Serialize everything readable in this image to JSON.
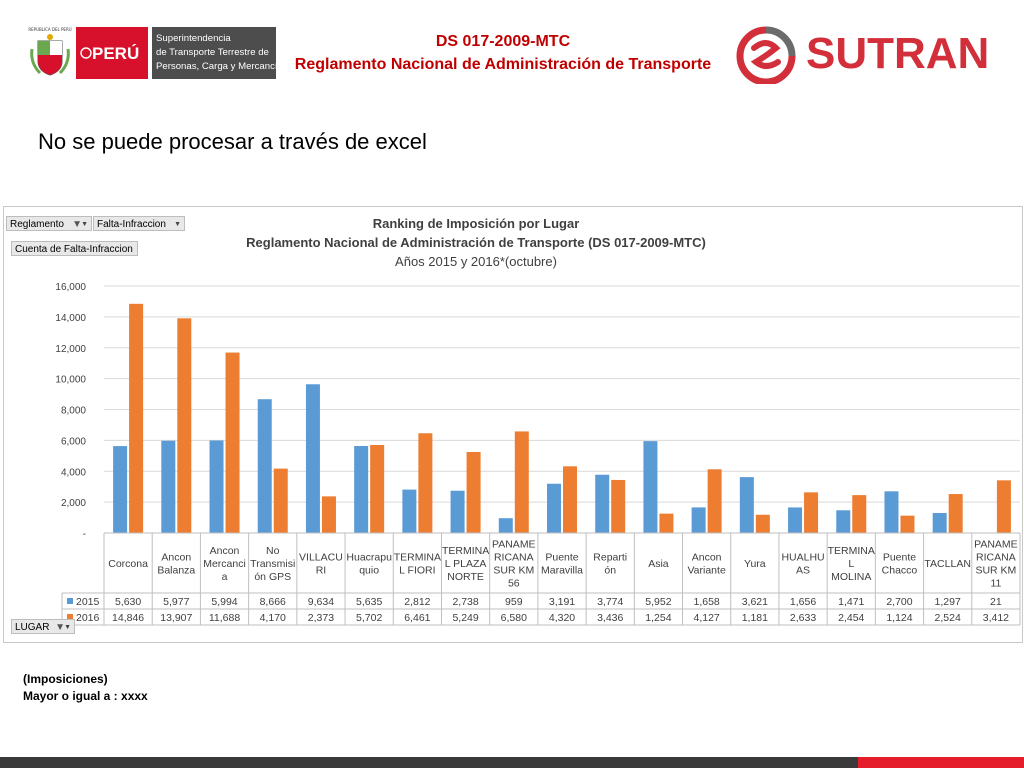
{
  "header": {
    "gov": {
      "shield_caption": "REPÚBLICA DEL PERÚ",
      "country": "PERÚ",
      "entity_lines": [
        "Superintendencia",
        "de Transporte Terrestre de",
        "Personas, Carga y Mercancías"
      ]
    },
    "title_line1": "DS 017-2009-MTC",
    "title_line2": "Reglamento Nacional de Administración de Transporte",
    "brand": "SUTRAN"
  },
  "subtitle": "No se puede procesar a través de excel",
  "pivot": {
    "filter_reglamento": "Reglamento",
    "filter_falta": "Falta-Infraccion",
    "value_field": "Cuenta de Falta-Infraccion",
    "row_field": "LUGAR"
  },
  "chart_data": {
    "type": "bar",
    "title": "Ranking de Imposición por Lugar",
    "subtitle_line1": "Reglamento Nacional  de Administración  de Transporte (DS 017-2009-MTC)",
    "subtitle_line2": "Años 2015 y 2016*(octubre)",
    "ylim": [
      0,
      16000
    ],
    "yticks": [
      "-",
      "2,000",
      "4,000",
      "6,000",
      "8,000",
      "10,000",
      "12,000",
      "14,000",
      "16,000"
    ],
    "grid": true,
    "categories": [
      [
        "Corcona"
      ],
      [
        "Ancon",
        "Balanza"
      ],
      [
        "Ancon",
        "Mercanci",
        "a"
      ],
      [
        "No",
        "Transmisi",
        "ón GPS"
      ],
      [
        "VILLACU",
        "RI"
      ],
      [
        "Huacrapu",
        "quio"
      ],
      [
        "TERMINA",
        "L FIORI"
      ],
      [
        "TERMINA",
        "L PLAZA",
        "NORTE"
      ],
      [
        "PANAME",
        "RICANA",
        "SUR KM",
        "56"
      ],
      [
        "Puente",
        "Maravilla"
      ],
      [
        "Reparti",
        "ón"
      ],
      [
        "Asia"
      ],
      [
        "Ancon",
        "Variante"
      ],
      [
        "Yura"
      ],
      [
        "HUALHU",
        "AS"
      ],
      [
        "TERMINA",
        "L",
        "MOLINA"
      ],
      [
        "Puente",
        "Chacco"
      ],
      [
        "TACLLAN"
      ],
      [
        "PANAME",
        "RICANA",
        "SUR KM",
        "11"
      ]
    ],
    "series": [
      {
        "name": "2015",
        "color": "#5b9bd5",
        "values": [
          5630,
          5977,
          5994,
          8666,
          9634,
          5635,
          2812,
          2738,
          959,
          3191,
          3774,
          5952,
          1658,
          3621,
          1656,
          1471,
          2700,
          1297,
          21
        ],
        "labels": [
          "5,630",
          "5,977",
          "5,994",
          "8,666",
          "9,634",
          "5,635",
          "2,812",
          "2,738",
          "959",
          "3,191",
          "3,774",
          "5,952",
          "1,658",
          "3,621",
          "1,656",
          "1,471",
          "2,700",
          "1,297",
          "21"
        ]
      },
      {
        "name": "2016",
        "color": "#ed7d31",
        "values": [
          14846,
          13907,
          11688,
          4170,
          2373,
          5702,
          6461,
          5249,
          6580,
          4320,
          3436,
          1254,
          4127,
          1181,
          2633,
          2454,
          1124,
          2524,
          3412
        ],
        "labels": [
          "14,846",
          "13,907",
          "11,688",
          "4,170",
          "2,373",
          "5,702",
          "6,461",
          "5,249",
          "6,580",
          "4,320",
          "3,436",
          "1,254",
          "4,127",
          "1,181",
          "2,633",
          "2,454",
          "1,124",
          "2,524",
          "3,412"
        ]
      }
    ]
  },
  "footnotes": {
    "line1": "(Imposiciones)",
    "line2": "Mayor o igual a : xxxx"
  },
  "colors": {
    "header_red": "#c00000",
    "brand_red": "#d32f3a",
    "peru_red": "#d7102b",
    "series_2015": "#5b9bd5",
    "series_2016": "#ed7d31"
  }
}
